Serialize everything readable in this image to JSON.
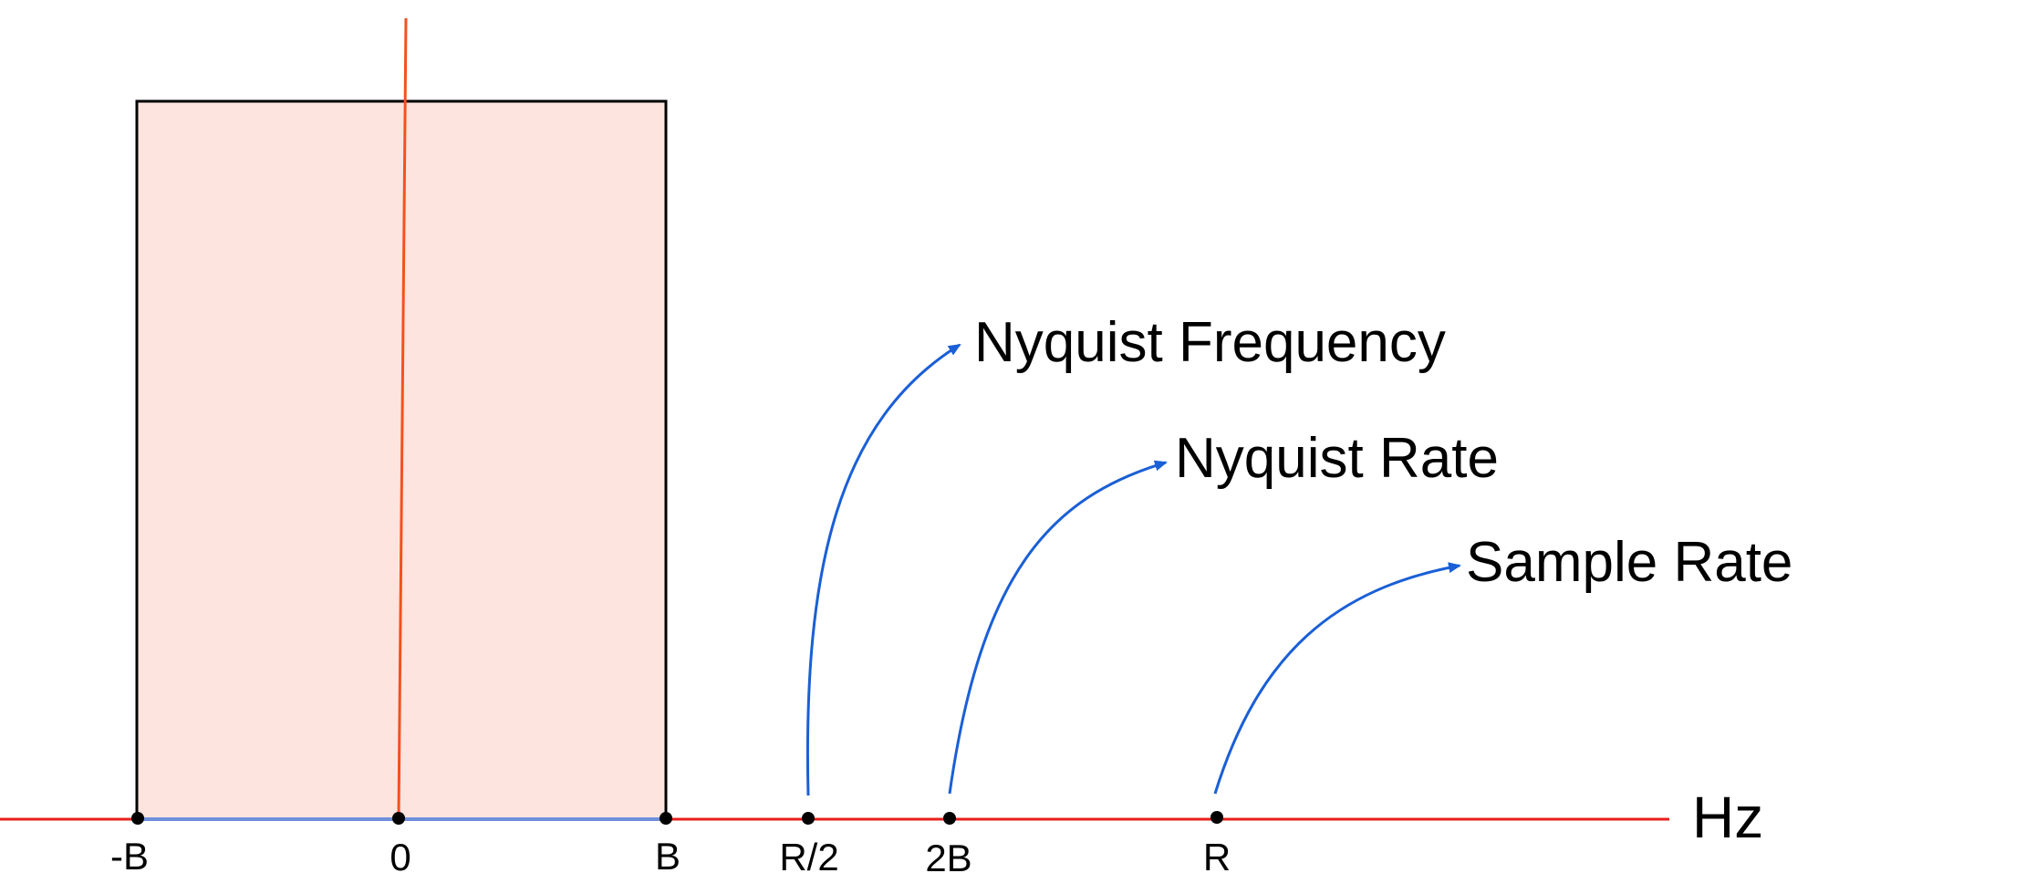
{
  "diagram": {
    "axis_unit": "Hz",
    "ticks": {
      "neg_b": "-B",
      "zero": "0",
      "b": "B",
      "r_half": "R/2",
      "two_b": "2B",
      "r": "R"
    },
    "callouts": {
      "nyquist_frequency": "Nyquist Frequency",
      "nyquist_rate": "Nyquist Rate",
      "sample_rate": "Sample Rate"
    },
    "colors": {
      "axis": "#e8201c",
      "vertical_line": "#f4511e",
      "band_fill": "#fde4df",
      "band_baseline": "#6f8fdc",
      "callout_arrow": "#1a5fd6",
      "points": "#000000"
    }
  }
}
